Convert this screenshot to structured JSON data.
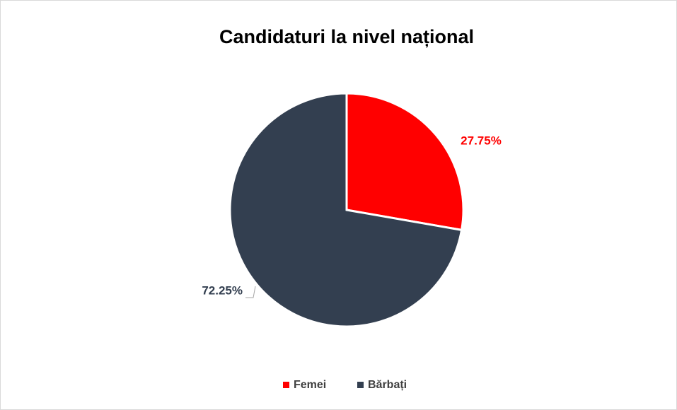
{
  "chart_data": {
    "type": "pie",
    "title": "Candidaturi la nivel național",
    "categories": [
      "Femei",
      "Bărbați"
    ],
    "values": [
      27.75,
      72.25
    ],
    "value_labels": [
      "27.75%",
      "72.25%"
    ],
    "colors": [
      "#ff0000",
      "#333f50"
    ],
    "legend": "bottom"
  }
}
